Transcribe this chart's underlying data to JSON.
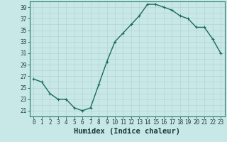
{
  "x": [
    0,
    1,
    2,
    3,
    4,
    5,
    6,
    7,
    8,
    9,
    10,
    11,
    12,
    13,
    14,
    15,
    16,
    17,
    18,
    19,
    20,
    21,
    22,
    23
  ],
  "y": [
    26.5,
    26.0,
    24.0,
    23.0,
    23.0,
    21.5,
    21.0,
    21.5,
    25.5,
    29.5,
    33.0,
    34.5,
    36.0,
    37.5,
    39.5,
    39.5,
    39.0,
    38.5,
    37.5,
    37.0,
    35.5,
    35.5,
    33.5,
    31.0
  ],
  "line_color": "#1a6b5a",
  "marker": "+",
  "bg_color": "#c8e8e8",
  "grid_color": "#b0cece",
  "xlabel": "Humidex (Indice chaleur)",
  "ylim": [
    20,
    40
  ],
  "xlim": [
    -0.5,
    23.5
  ],
  "yticks": [
    21,
    23,
    25,
    27,
    29,
    31,
    33,
    35,
    37,
    39
  ],
  "xticks": [
    0,
    1,
    2,
    3,
    4,
    5,
    6,
    7,
    8,
    9,
    10,
    11,
    12,
    13,
    14,
    15,
    16,
    17,
    18,
    19,
    20,
    21,
    22,
    23
  ],
  "xlabel_fontsize": 7.5,
  "tick_fontsize": 5.5,
  "line_width": 1.0,
  "marker_size": 3.5
}
